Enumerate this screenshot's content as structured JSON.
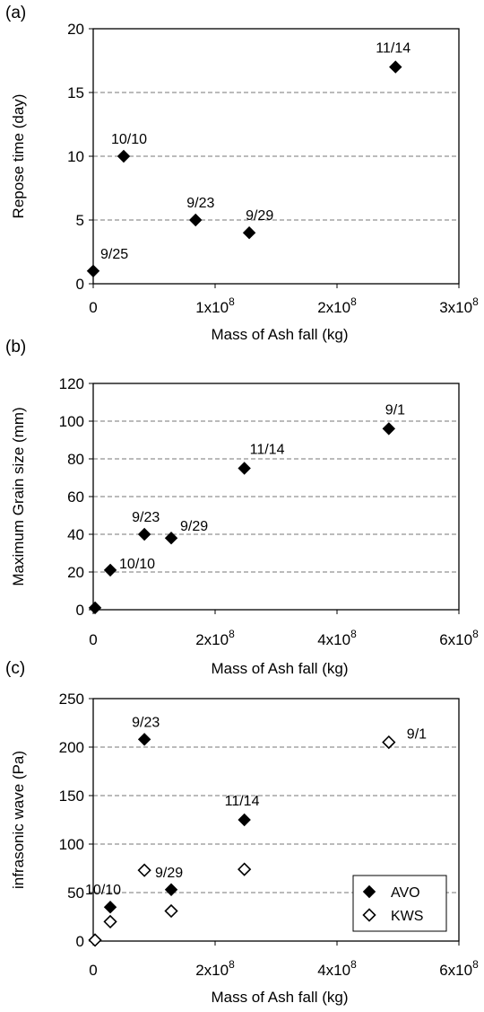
{
  "chart_data": [
    {
      "panel_label": "(a)",
      "type": "scatter",
      "xlabel": "Mass of Ash fall (kg)",
      "ylabel": "Repose time (day)",
      "xlim": [
        0,
        300000000
      ],
      "ylim": [
        0,
        20
      ],
      "x_ticks": [
        {
          "value": 0,
          "base": "0",
          "exp": ""
        },
        {
          "value": 100000000,
          "base": "1x10",
          "exp": "8"
        },
        {
          "value": 200000000,
          "base": "2x10",
          "exp": "8"
        },
        {
          "value": 300000000,
          "base": "3x10",
          "exp": "8"
        }
      ],
      "y_ticks": [
        0,
        5,
        10,
        15,
        20
      ],
      "grid": "horizontal dashed",
      "series": [
        {
          "marker": "filled-diamond",
          "points": [
            {
              "x": 0,
              "y": 1,
              "label": "9/25"
            },
            {
              "x": 25000000,
              "y": 10,
              "label": "10/10"
            },
            {
              "x": 84000000,
              "y": 5,
              "label": "9/23"
            },
            {
              "x": 128000000,
              "y": 4,
              "label": "9/29"
            },
            {
              "x": 248000000,
              "y": 17,
              "label": "11/14"
            }
          ]
        }
      ]
    },
    {
      "panel_label": "(b)",
      "type": "scatter",
      "xlabel": "Mass of Ash fall (kg)",
      "ylabel": "Maximum Grain size (mm)",
      "xlim": [
        0,
        600000000
      ],
      "ylim": [
        0,
        120
      ],
      "x_ticks": [
        {
          "value": 0,
          "base": "0",
          "exp": ""
        },
        {
          "value": 200000000,
          "base": "2x10",
          "exp": "8"
        },
        {
          "value": 400000000,
          "base": "4x10",
          "exp": "8"
        },
        {
          "value": 600000000,
          "base": "6x10",
          "exp": "8"
        }
      ],
      "y_ticks": [
        0,
        20,
        40,
        60,
        80,
        100,
        120
      ],
      "grid": "horizontal dashed",
      "series": [
        {
          "marker": "filled-diamond",
          "points": [
            {
              "x": 3000000,
              "y": 1,
              "label": ""
            },
            {
              "x": 28000000,
              "y": 21,
              "label": "10/10"
            },
            {
              "x": 84000000,
              "y": 40,
              "label": "9/23"
            },
            {
              "x": 128000000,
              "y": 38,
              "label": "9/29"
            },
            {
              "x": 248000000,
              "y": 75,
              "label": "11/14"
            },
            {
              "x": 485000000,
              "y": 96,
              "label": "9/1"
            }
          ]
        }
      ]
    },
    {
      "panel_label": "(c)",
      "type": "scatter",
      "xlabel": "Mass of Ash fall (kg)",
      "ylabel": "infrasonic wave (Pa)",
      "xlim": [
        0,
        600000000
      ],
      "ylim": [
        0,
        250
      ],
      "x_ticks": [
        {
          "value": 0,
          "base": "0",
          "exp": ""
        },
        {
          "value": 200000000,
          "base": "2x10",
          "exp": "8"
        },
        {
          "value": 400000000,
          "base": "4x10",
          "exp": "8"
        },
        {
          "value": 600000000,
          "base": "6x10",
          "exp": "8"
        }
      ],
      "y_ticks": [
        0,
        50,
        100,
        150,
        200,
        250
      ],
      "grid": "horizontal dashed",
      "legend": "bottom-right",
      "series": [
        {
          "name": "AVO",
          "marker": "filled-diamond",
          "points": [
            {
              "x": 28000000,
              "y": 35,
              "label": "10/10"
            },
            {
              "x": 84000000,
              "y": 208,
              "label": "9/23"
            },
            {
              "x": 128000000,
              "y": 53,
              "label": "9/29"
            },
            {
              "x": 248000000,
              "y": 125,
              "label": "11/14"
            }
          ]
        },
        {
          "name": "KWS",
          "marker": "open-diamond",
          "points": [
            {
              "x": 3000000,
              "y": 1,
              "label": ""
            },
            {
              "x": 28000000,
              "y": 20,
              "label": ""
            },
            {
              "x": 84000000,
              "y": 73,
              "label": ""
            },
            {
              "x": 128000000,
              "y": 31,
              "label": ""
            },
            {
              "x": 248000000,
              "y": 74,
              "label": ""
            },
            {
              "x": 485000000,
              "y": 205,
              "label": "9/1"
            }
          ]
        }
      ]
    }
  ]
}
